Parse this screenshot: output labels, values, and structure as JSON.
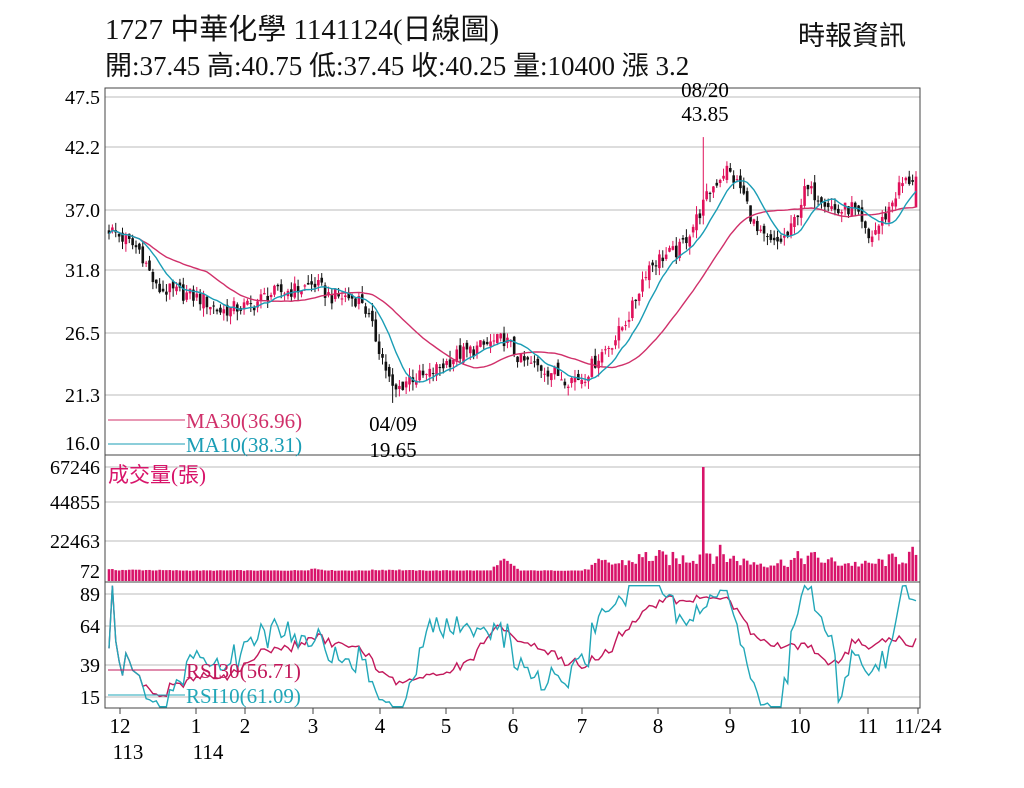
{
  "header": {
    "title": "1727  中華化學 1141124(日線圖)",
    "ohlc": "開:37.45 高:40.75 低:37.45 收:40.25 量:10400 漲 3.2",
    "source": "時報資訊"
  },
  "colors": {
    "up": "#e0105a",
    "down": "#111111",
    "ma30": "#d0306a",
    "ma10": "#1a9db5",
    "volume": "#d8146a",
    "rsi30": "#c2185b",
    "rsi10": "#22a7b8",
    "grid": "#bbbbbb"
  },
  "chart_data": [
    {
      "type": "candlestick",
      "panel": "price",
      "ylim": [
        16.0,
        47.5
      ],
      "yticks": [
        "47.5",
        "42.2",
        "37.0",
        "31.8",
        "26.5",
        "21.3",
        "16.0"
      ],
      "grid": true,
      "weekly_close": [
        35.5,
        34.5,
        33.5,
        30,
        29.8,
        29.5,
        29,
        28,
        28.3,
        28.5,
        29.5,
        29.8,
        30,
        30.5,
        29.3,
        29.3,
        29,
        25,
        20.5,
        22,
        22,
        23,
        24,
        24.5,
        25,
        25.5,
        23.5,
        23,
        22.5,
        21.8,
        22,
        24,
        25.5,
        28,
        32,
        33,
        33.5,
        36,
        39,
        41,
        39,
        35,
        34,
        35,
        39,
        38.5,
        37,
        37.5,
        34.5,
        36.5,
        39.5,
        40.25
      ],
      "last": {
        "open": 37.45,
        "high": 40.75,
        "low": 37.45,
        "close": 40.25
      },
      "annotations": [
        {
          "date": "08/20",
          "value": "43.85",
          "type": "high"
        },
        {
          "date": "04/09",
          "value": "19.65",
          "type": "low"
        }
      ],
      "series": [
        {
          "name": "MA30",
          "label": "MA30(36.96)"
        },
        {
          "name": "MA10",
          "label": "MA10(38.31)"
        }
      ]
    },
    {
      "type": "bar",
      "panel": "volume",
      "title": "成交量(張)",
      "yticks": [
        "67246",
        "44855",
        "22463",
        "72"
      ],
      "ylim": [
        72,
        67246
      ],
      "weekly_volume": [
        800,
        600,
        700,
        500,
        400,
        300,
        300,
        300,
        400,
        300,
        300,
        300,
        400,
        1500,
        400,
        300,
        300,
        700,
        800,
        400,
        300,
        300,
        400,
        300,
        300,
        5500,
        300,
        300,
        300,
        300,
        300,
        5000,
        4500,
        6000,
        9000,
        8000,
        7000,
        9000,
        12000,
        9000,
        6000,
        5000,
        4500,
        6000,
        9000,
        7000,
        5000,
        4500,
        4000,
        6000,
        8000,
        10400
      ],
      "peak": {
        "date": "08/20",
        "value": 67246
      }
    },
    {
      "type": "line",
      "panel": "rsi",
      "yticks": [
        "89",
        "64",
        "39",
        "15"
      ],
      "ylim": [
        15,
        89
      ],
      "series": [
        {
          "name": "RSI30",
          "label": "RSI30(56.71)"
        },
        {
          "name": "RSI10",
          "label": "RSI10(61.09)"
        }
      ]
    }
  ],
  "xaxis": {
    "months": [
      "12",
      "1",
      "2",
      "3",
      "4",
      "5",
      "6",
      "7",
      "8",
      "9",
      "10",
      "11",
      "11/24"
    ],
    "years": [
      "113",
      "114"
    ]
  }
}
